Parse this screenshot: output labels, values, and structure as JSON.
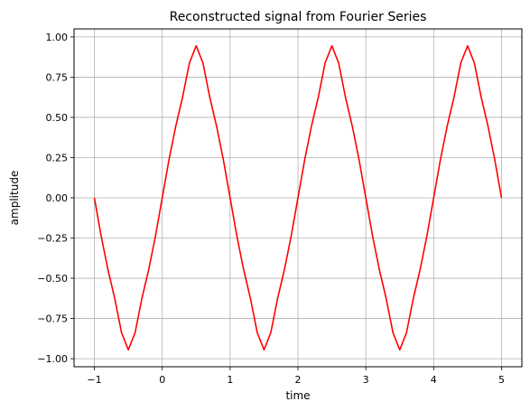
{
  "chart_data": {
    "type": "line",
    "title": "Reconstructed signal from Fourier Series",
    "xlabel": "time",
    "ylabel": "amplitude",
    "xlim": [
      -1.3,
      5.3
    ],
    "ylim": [
      -1.05,
      1.05
    ],
    "xticks": [
      -1,
      0,
      1,
      2,
      3,
      4,
      5
    ],
    "xtick_labels": [
      "−1",
      "0",
      "1",
      "2",
      "3",
      "4",
      "5"
    ],
    "yticks": [
      -1.0,
      -0.75,
      -0.5,
      -0.25,
      0.0,
      0.25,
      0.5,
      0.75,
      1.0
    ],
    "ytick_labels": [
      "−1.00",
      "−0.75",
      "−0.50",
      "−0.25",
      "0.00",
      "0.25",
      "0.50",
      "0.75",
      "1.00"
    ],
    "grid": true,
    "legend": "none",
    "series": [
      {
        "color": "#ff0000",
        "x": [
          -1.0,
          -0.9,
          -0.8,
          -0.7,
          -0.6,
          -0.5,
          -0.4,
          -0.3,
          -0.2,
          -0.1,
          0.0,
          0.1,
          0.2,
          0.3,
          0.4,
          0.5,
          0.6,
          0.7,
          0.8,
          0.9,
          1.0,
          1.1,
          1.2,
          1.3,
          1.4,
          1.5,
          1.6,
          1.7,
          1.8,
          1.9,
          2.0,
          2.1,
          2.2,
          2.3,
          2.4,
          2.5,
          2.6,
          2.7,
          2.8,
          2.9,
          3.0,
          3.1,
          3.2,
          3.3,
          3.4,
          3.5,
          3.6,
          3.7,
          3.8,
          3.9,
          4.0,
          4.1,
          4.2,
          4.3,
          4.4,
          4.5,
          4.6,
          4.7,
          4.8,
          4.9,
          5.0
        ],
        "y": [
          0.0,
          -0.238,
          -0.447,
          -0.626,
          -0.838,
          -0.945,
          -0.838,
          -0.626,
          -0.447,
          -0.238,
          0.0,
          0.238,
          0.447,
          0.626,
          0.838,
          0.945,
          0.838,
          0.626,
          0.447,
          0.238,
          0.0,
          -0.238,
          -0.447,
          -0.626,
          -0.838,
          -0.945,
          -0.838,
          -0.626,
          -0.447,
          -0.238,
          0.0,
          0.238,
          0.447,
          0.626,
          0.838,
          0.945,
          0.838,
          0.626,
          0.447,
          0.238,
          0.0,
          -0.238,
          -0.447,
          -0.626,
          -0.838,
          -0.945,
          -0.838,
          -0.626,
          -0.447,
          -0.238,
          0.0,
          0.238,
          0.447,
          0.626,
          0.838,
          0.945,
          0.838,
          0.626,
          0.447,
          0.238,
          0.0
        ]
      }
    ]
  }
}
